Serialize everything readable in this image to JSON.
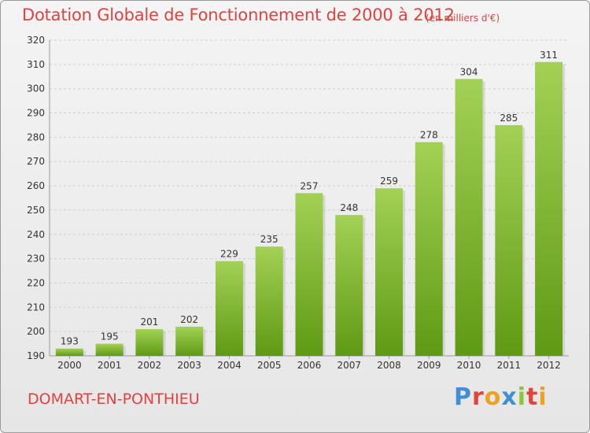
{
  "title": "Dotation Globale de Fonctionnement de 2000 à 2012",
  "subtitle": "(en milliers d'€)",
  "commune": "DOMART-EN-PONTHIEU",
  "logo": "Proxiti",
  "colors": {
    "title": "#e0433f",
    "bar_light": "#9ccc4c",
    "bar_dark": "#5f9a14"
  },
  "chart_data": {
    "type": "bar",
    "title": "Dotation Globale de Fonctionnement de 2000 à 2012",
    "subtitle": "(en milliers d'€)",
    "categories": [
      "2000",
      "2001",
      "2002",
      "2003",
      "2004",
      "2005",
      "2006",
      "2007",
      "2008",
      "2009",
      "2010",
      "2011",
      "2012"
    ],
    "values": [
      193,
      195,
      201,
      202,
      229,
      235,
      257,
      248,
      259,
      278,
      304,
      285,
      311
    ],
    "yticks": [
      190,
      200,
      210,
      220,
      230,
      240,
      250,
      260,
      270,
      280,
      290,
      300,
      310,
      320
    ],
    "ylim": [
      190,
      320
    ],
    "grid": true
  }
}
